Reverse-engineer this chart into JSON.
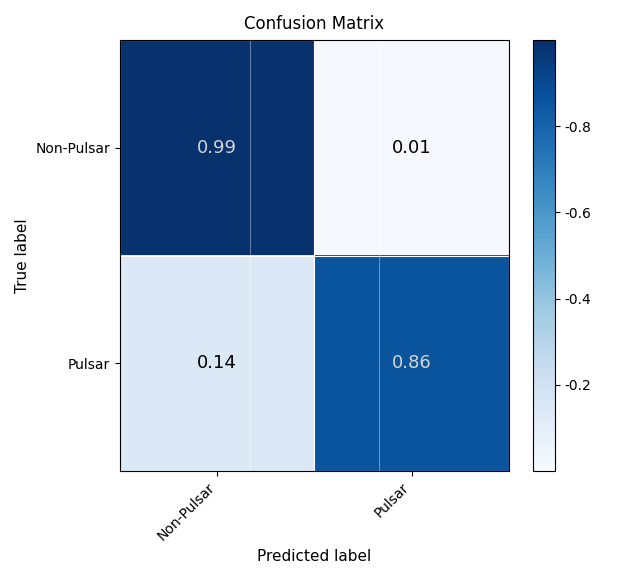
{
  "matrix": [
    [
      0.99,
      0.01
    ],
    [
      0.14,
      0.86
    ]
  ],
  "classes": [
    "Non-Pulsar",
    "Pulsar"
  ],
  "title": "Confusion Matrix",
  "xlabel": "Predicted label",
  "ylabel": "True label",
  "cmap": "Blues",
  "vmin": 0.0,
  "vmax": 1.0,
  "text_color_dark_bg": "lightgray",
  "text_color_light_bg": "black",
  "text_threshold": 0.5,
  "colorbar_ticks": [
    0.2,
    0.4,
    0.6,
    0.8
  ],
  "figsize": [
    6.21,
    5.79
  ],
  "dpi": 100,
  "grid_color": "lightgray",
  "grid_linewidth": 0.5
}
